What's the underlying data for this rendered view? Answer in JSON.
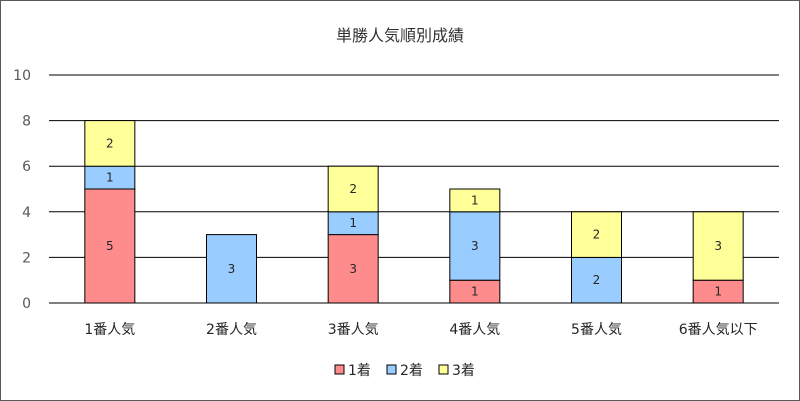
{
  "chart_data": {
    "type": "bar",
    "stacked": true,
    "title": "単勝人気順別成績",
    "xlabel": "",
    "ylabel": "",
    "ylim": [
      0,
      10
    ],
    "yticks": [
      0,
      2,
      4,
      6,
      8,
      10
    ],
    "grid": true,
    "legend_position": "bottom",
    "categories": [
      "1番人気",
      "2番人気",
      "3番人気",
      "4番人気",
      "5番人気",
      "6番人気以下"
    ],
    "series": [
      {
        "name": "1着",
        "color": "#ff8c8c",
        "values": [
          5,
          0,
          3,
          1,
          0,
          1
        ]
      },
      {
        "name": "2着",
        "color": "#99ccff",
        "values": [
          1,
          3,
          1,
          3,
          2,
          0
        ]
      },
      {
        "name": "3着",
        "color": "#ffff99",
        "values": [
          2,
          0,
          2,
          1,
          2,
          3
        ]
      }
    ]
  }
}
